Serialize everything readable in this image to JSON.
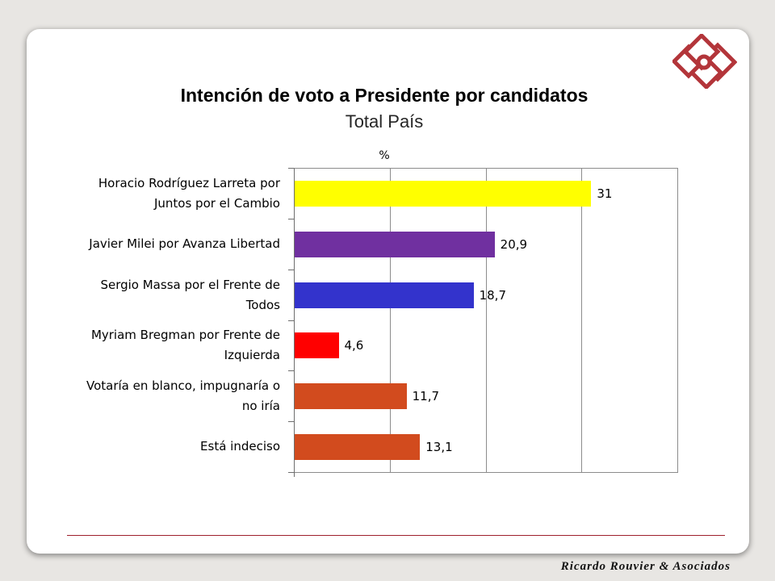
{
  "slide": {
    "footer": "Ricardo Rouvier & Asociados",
    "background_color": "#e8e6e3",
    "rule_color": "#9e1f2c",
    "logo_color": "#b3353a",
    "logo": "rouvier-diamond-logo"
  },
  "chart_data": {
    "type": "bar",
    "orientation": "horizontal",
    "title": "Intención de voto a Presidente por candidatos",
    "subtitle": "Total País",
    "unit_label": "%",
    "categories": [
      "Horacio Rodríguez Larreta por\nJuntos por el Cambio",
      "Javier Milei por Avanza Libertad",
      "Sergio Massa por el Frente de\nTodos",
      "Myriam Bregman por Frente de\nIzquierda",
      "Votaría en blanco, impugnaría o\nno iría",
      "Está indeciso"
    ],
    "values": [
      31,
      20.9,
      18.7,
      4.6,
      11.7,
      13.1
    ],
    "data_labels": [
      "31",
      "20,9",
      "18,7",
      "4,6",
      "11,7",
      "13,1"
    ],
    "bar_colors": [
      "#ffff00",
      "#7030a0",
      "#3333cc",
      "#ff0000",
      "#d24b1e",
      "#d24b1e"
    ],
    "xlim": [
      0,
      40
    ],
    "gridlines": [
      10,
      20,
      30
    ],
    "grid": true,
    "legend": "none"
  }
}
